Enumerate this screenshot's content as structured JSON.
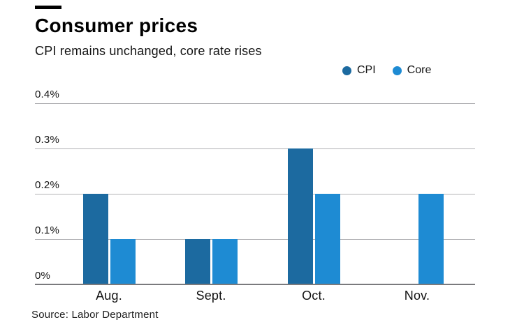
{
  "header": {
    "title": "Consumer prices",
    "subtitle": "CPI remains unchanged, core rate rises"
  },
  "source_note": "Source: Labor Department",
  "colors": {
    "cpi": "#1c6aa0",
    "core": "#1e8bd3",
    "gridline": "#b2b2b5",
    "baseline": "#7a7a7d"
  },
  "chart_data": {
    "type": "bar",
    "title": "Consumer prices",
    "subtitle": "CPI remains unchanged, core rate rises",
    "source": "Source: Labor Department",
    "categories": [
      "Aug.",
      "Sept.",
      "Oct.",
      "Nov."
    ],
    "series": [
      {
        "name": "CPI",
        "color": "#1c6aa0",
        "values": [
          0.2,
          0.1,
          0.3,
          0
        ]
      },
      {
        "name": "Core",
        "color": "#1e8bd3",
        "values": [
          0.1,
          0.1,
          0.2,
          0.2
        ]
      }
    ],
    "y_ticks": [
      "0%",
      "0.1%",
      "0.2%",
      "0.3%",
      "0.4%"
    ],
    "y_tick_values": [
      0,
      0.1,
      0.2,
      0.3,
      0.4
    ],
    "ylim": [
      0,
      0.4
    ],
    "unit": "%",
    "grid": true,
    "legend_position": "top-right",
    "xlabel": "",
    "ylabel": ""
  }
}
